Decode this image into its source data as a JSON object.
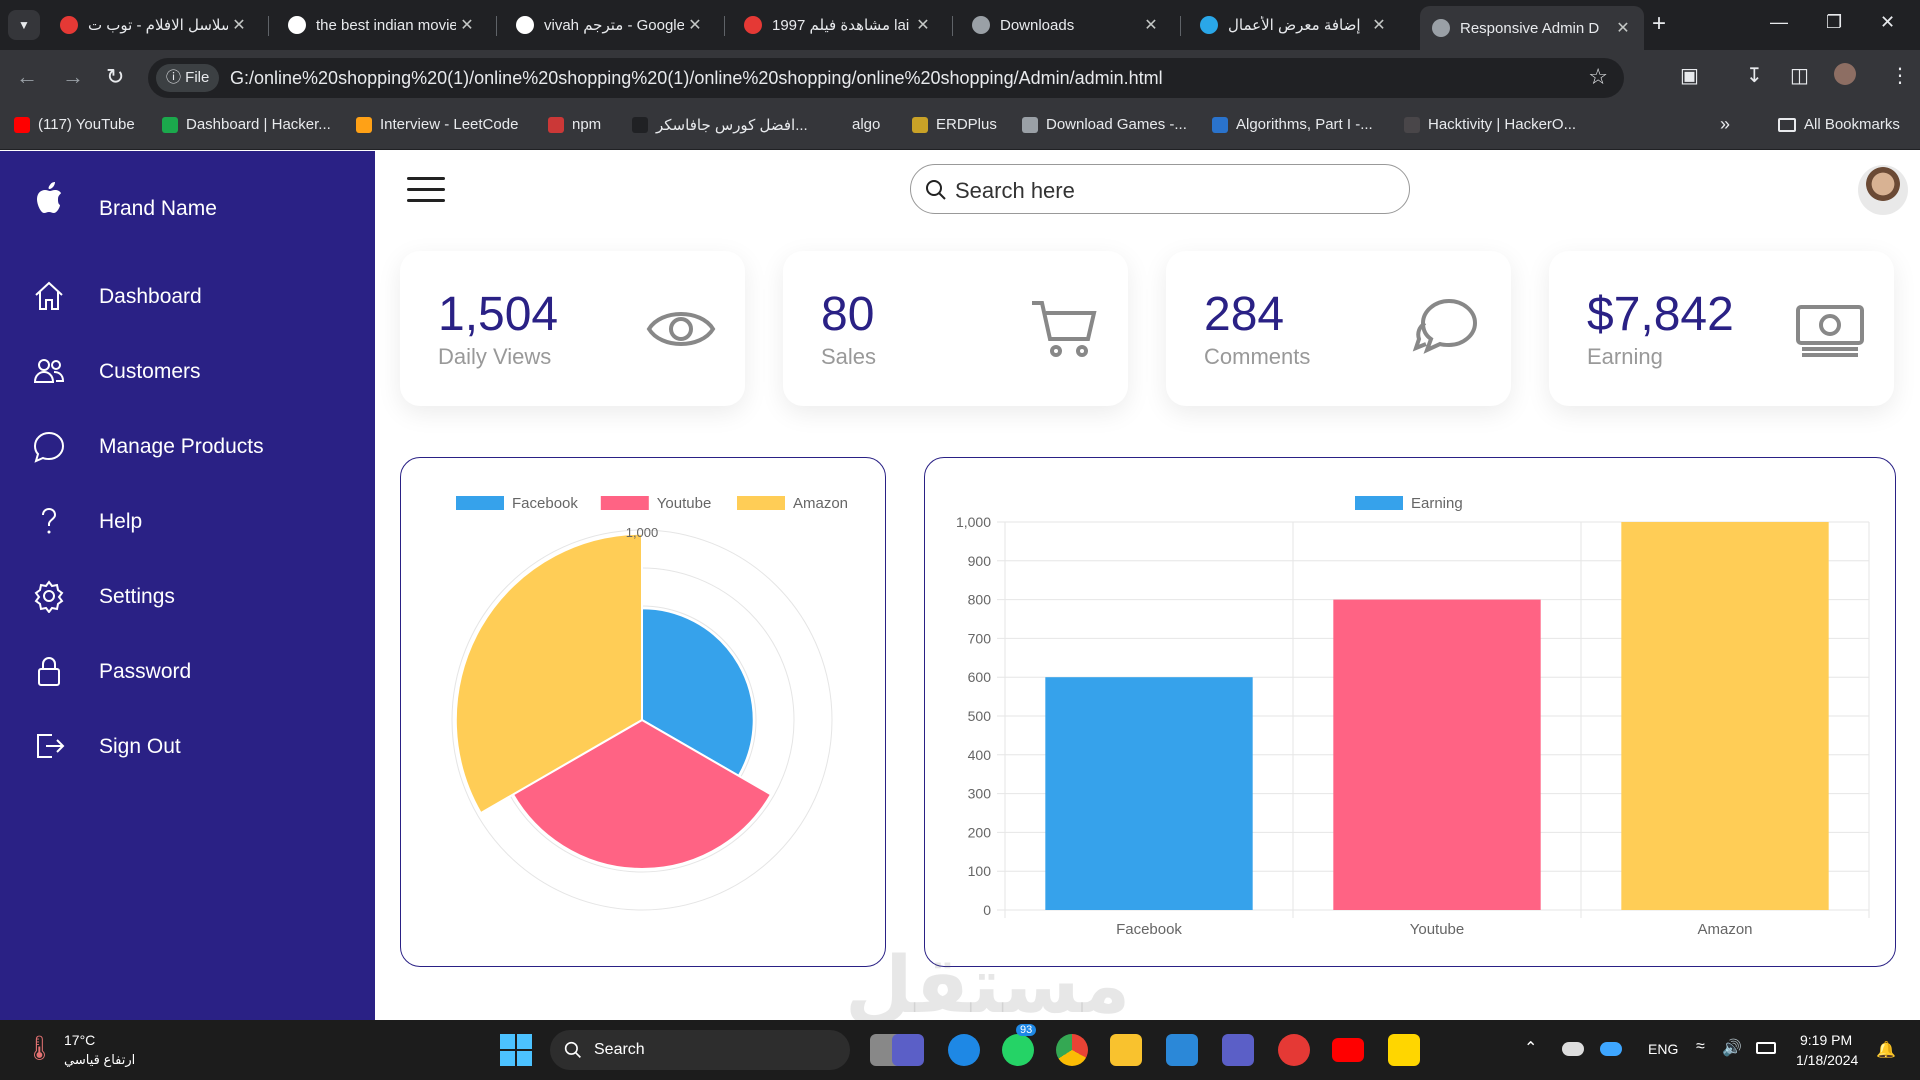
{
  "browser": {
    "tabs": [
      {
        "title": "سلاسل الافلام - توب ت",
        "fav": "#e53935"
      },
      {
        "title": "the best indian movie",
        "fav": "#ffffff"
      },
      {
        "title": "vivah مترجم - Google",
        "fav": "#ffffff"
      },
      {
        "title": "مشاهدة فيلم 1997 lai",
        "fav": "#e53935"
      },
      {
        "title": "Downloads",
        "fav": "#9aa0a6"
      },
      {
        "title": "إضافة معرض الأعمال",
        "fav": "#2aa7e8"
      },
      {
        "title": "Responsive Admin D",
        "fav": "#9aa0a6"
      }
    ],
    "file_chip": "ⓘ File",
    "url": "G:/online%20shopping%20(1)/online%20shopping%20(1)/online%20shopping/online%20shopping/Admin/admin.html",
    "bookmarks": [
      {
        "label": "(117) YouTube",
        "color": "#ff0000"
      },
      {
        "label": "Dashboard | Hacker...",
        "color": "#1ba94c"
      },
      {
        "label": "Interview - LeetCode",
        "color": "#ffa116"
      },
      {
        "label": "npm",
        "color": "#cb3837"
      },
      {
        "label": "افضل كورس جافاسكر...",
        "color": "#202124"
      },
      {
        "label": "algo",
        "color": "#35363a"
      },
      {
        "label": "ERDPlus",
        "color": "#c9a227"
      },
      {
        "label": "Download Games -...",
        "color": "#9aa0a6"
      },
      {
        "label": "Algorithms, Part I -...",
        "color": "#2a73cc"
      },
      {
        "label": "Hacktivity | HackerO...",
        "color": "#494649"
      }
    ],
    "more": "»",
    "all_bookmarks": "All Bookmarks"
  },
  "sidebar": {
    "brand": "Brand Name",
    "items": [
      {
        "label": "Dashboard",
        "icon": "home-icon"
      },
      {
        "label": "Customers",
        "icon": "people-icon"
      },
      {
        "label": "Manage Products",
        "icon": "chat-bubble-icon"
      },
      {
        "label": "Help",
        "icon": "help-icon"
      },
      {
        "label": "Settings",
        "icon": "settings-icon"
      },
      {
        "label": "Password",
        "icon": "lock-icon"
      },
      {
        "label": "Sign Out",
        "icon": "sign-out-icon"
      }
    ]
  },
  "topbar": {
    "search_placeholder": "Search here"
  },
  "cards": [
    {
      "number": "1,504",
      "name": "Daily Views",
      "icon": "eye-icon"
    },
    {
      "number": "80",
      "name": "Sales",
      "icon": "cart-icon"
    },
    {
      "number": "284",
      "name": "Comments",
      "icon": "comments-icon"
    },
    {
      "number": "$7,842",
      "name": "Earning",
      "icon": "cash-icon"
    }
  ],
  "colors": {
    "primary": "#2a2185",
    "facebook": "#36a2eb",
    "youtube": "#ff6384",
    "amazon": "#ffcd56"
  },
  "chart_data": [
    {
      "type": "polarArea",
      "categories": [
        "Facebook",
        "Youtube",
        "Amazon"
      ],
      "values": [
        600,
        800,
        1000
      ],
      "legend": "top",
      "r_ticks": [
        "1,000"
      ]
    },
    {
      "type": "bar",
      "categories": [
        "Facebook",
        "Youtube",
        "Amazon"
      ],
      "series": [
        {
          "name": "Earning",
          "values": [
            600,
            800,
            1000
          ]
        }
      ],
      "ylim": [
        0,
        1000
      ],
      "yticks": [
        "0",
        "100",
        "200",
        "300",
        "400",
        "500",
        "600",
        "700",
        "800",
        "900",
        "1,000"
      ],
      "legend": "top",
      "grid": true
    }
  ],
  "taskbar": {
    "weather_temp": "17°C",
    "weather_desc": "ارتفاع قياسي",
    "search": "Search",
    "lang": "ENG",
    "time": "9:19 PM",
    "date": "1/18/2024",
    "whatsapp_badge": "93"
  },
  "watermark": "مستقل"
}
